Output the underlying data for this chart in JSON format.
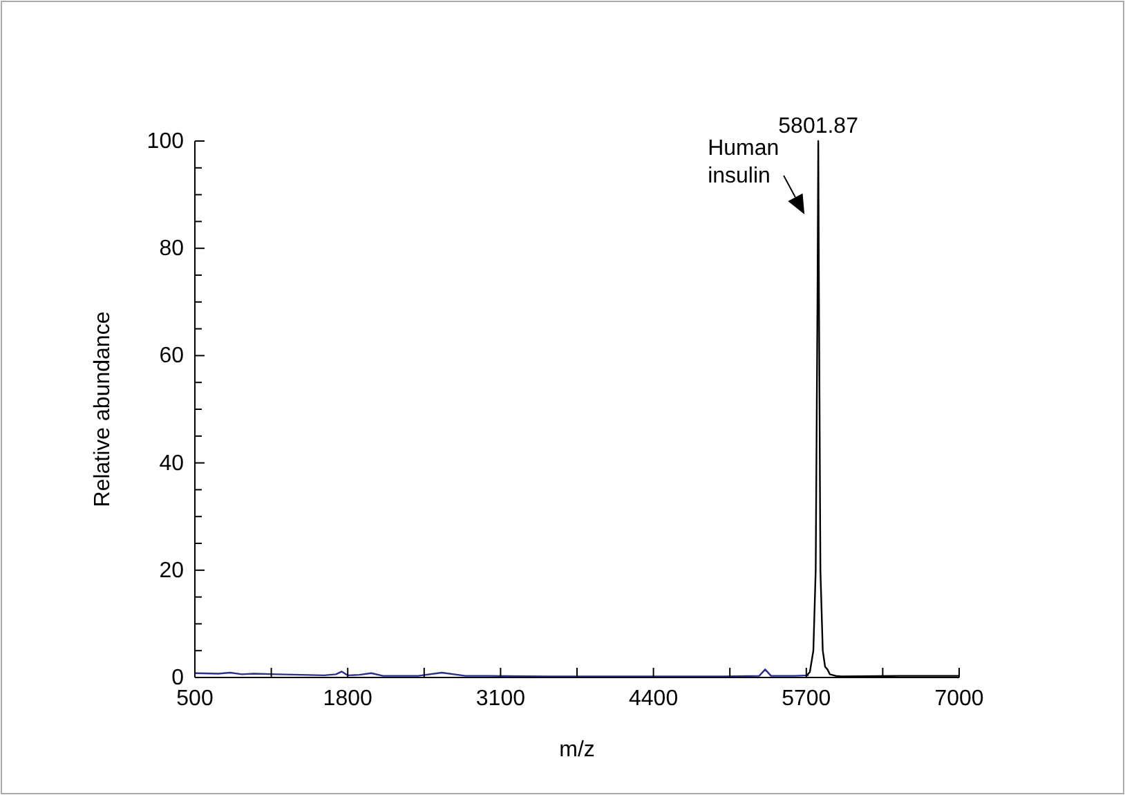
{
  "chart_data": {
    "type": "line",
    "xlabel": "m/z",
    "ylabel": "Relative abundance",
    "xlim": [
      500,
      7000
    ],
    "ylim": [
      0,
      100
    ],
    "xticks": [
      500,
      {
        "value": 1150,
        "label": null
      },
      1800,
      {
        "value": 2450,
        "label": null
      },
      3100,
      {
        "value": 3750,
        "label": null
      },
      4400,
      {
        "value": 5050,
        "label": null
      },
      5700,
      {
        "value": 6350,
        "label": null
      },
      7000
    ],
    "yticks": [
      0,
      {
        "value": 5,
        "label": null
      },
      {
        "value": 10,
        "label": null
      },
      {
        "value": 15,
        "label": null
      },
      20,
      {
        "value": 25,
        "label": null
      },
      {
        "value": 30,
        "label": null
      },
      {
        "value": 35,
        "label": null
      },
      40,
      {
        "value": 45,
        "label": null
      },
      {
        "value": 50,
        "label": null
      },
      {
        "value": 55,
        "label": null
      },
      60,
      {
        "value": 65,
        "label": null
      },
      {
        "value": 70,
        "label": null
      },
      {
        "value": 75,
        "label": null
      },
      80,
      {
        "value": 85,
        "label": null
      },
      {
        "value": 90,
        "label": null
      },
      {
        "value": 95,
        "label": null
      },
      100
    ],
    "grid": false,
    "series": [
      {
        "color": "#2a2f8c",
        "x": [
          500,
          700,
          800,
          900,
          1000,
          1200,
          1400,
          1600,
          1700,
          1750,
          1800,
          1900,
          2000,
          2100,
          2400,
          2600,
          2800,
          3000,
          3500,
          4000,
          4500,
          5000,
          5300,
          5350,
          5400,
          5600,
          5720
        ],
        "values": [
          0.8,
          0.7,
          0.9,
          0.6,
          0.7,
          0.6,
          0.5,
          0.4,
          0.6,
          1.1,
          0.4,
          0.5,
          0.8,
          0.3,
          0.3,
          0.9,
          0.3,
          0.3,
          0.2,
          0.2,
          0.2,
          0.2,
          0.3,
          1.5,
          0.3,
          0.3,
          0.4
        ]
      },
      {
        "color": "#000000",
        "x": [
          5700,
          5730,
          5760,
          5780,
          5795,
          5801.87,
          5808,
          5820,
          5840,
          5860,
          5880,
          5900,
          5950,
          6000,
          6500,
          7000
        ],
        "values": [
          0.3,
          1,
          5,
          20,
          70,
          100,
          70,
          20,
          5,
          2,
          1.5,
          0.6,
          0.3,
          0.2,
          0.3,
          0.3
        ]
      }
    ],
    "annotations": [
      {
        "text": "5801.87",
        "x": 5801.87,
        "y": 100
      },
      "Human insulin"
    ]
  }
}
